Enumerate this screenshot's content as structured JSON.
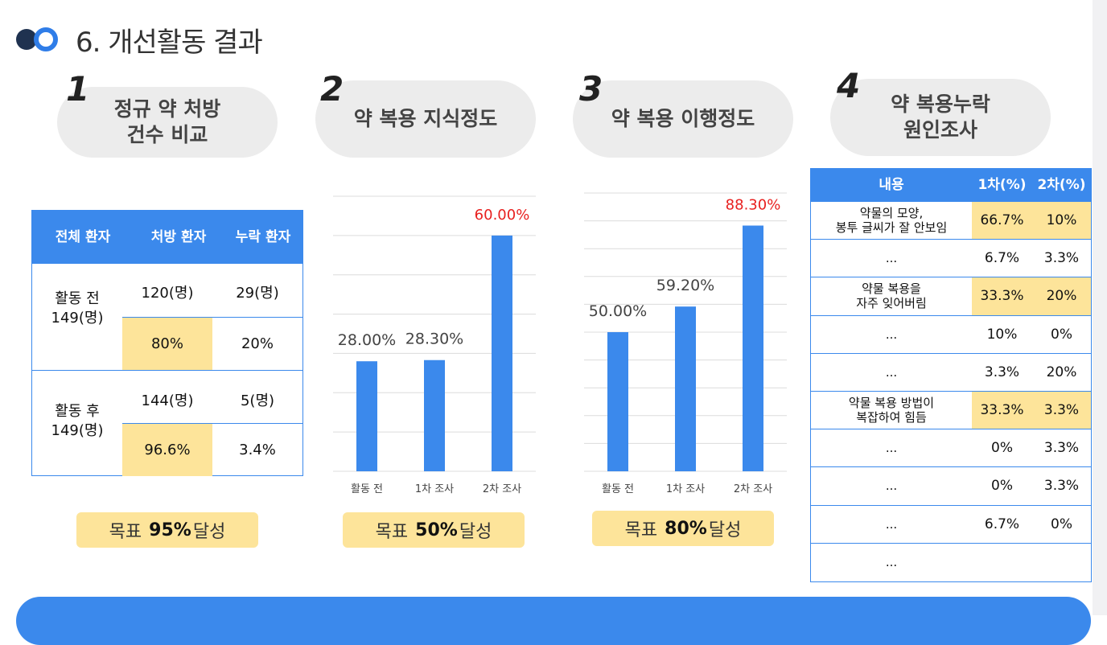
{
  "title": "6. 개선활동 결과",
  "sections": [
    {
      "num": "1",
      "label": "정규 약 처방\n건수 비교"
    },
    {
      "num": "2",
      "label": "약 복용 지식정도"
    },
    {
      "num": "3",
      "label": "약 복용 이행정도"
    },
    {
      "num": "4",
      "label": "약 복용누락\n원인조사"
    }
  ],
  "table1": {
    "headers": [
      "전체 환자",
      "처방 환자",
      "누락 환자"
    ],
    "rows": [
      {
        "label": "활동 전",
        "total": "149(명)",
        "rx_count": "120(명)",
        "miss_count": "29(명)",
        "rx_pct": "80%",
        "miss_pct": "20%"
      },
      {
        "label": "활동 후",
        "total": "149(명)",
        "rx_count": "144(명)",
        "miss_count": "5(명)",
        "rx_pct": "96.6%",
        "miss_pct": "3.4%"
      }
    ]
  },
  "goals": [
    {
      "pre": "목표",
      "value": "95%",
      "post": "달성"
    },
    {
      "pre": "목표",
      "value": "50%",
      "post": "달성"
    },
    {
      "pre": "목표",
      "value": "80%",
      "post": "달성"
    }
  ],
  "chart_data": [
    {
      "type": "bar",
      "categories": [
        "활동 전",
        "1차 조사",
        "2차 조사"
      ],
      "values": [
        28.0,
        28.3,
        60.0
      ],
      "labels": [
        "28.00%",
        "28.30%",
        "60.00%"
      ],
      "ylim": [
        0,
        70
      ],
      "grid": true,
      "bar_color": "#3b89ec",
      "highlight_label_color": "#e8201f"
    },
    {
      "type": "bar",
      "categories": [
        "활동 전",
        "1차 조사",
        "2차 조사"
      ],
      "values": [
        50.0,
        59.2,
        88.3
      ],
      "labels": [
        "50.00%",
        "59.20%",
        "88.30%"
      ],
      "ylim": [
        0,
        100
      ],
      "grid": true,
      "bar_color": "#3b89ec",
      "highlight_label_color": "#e8201f"
    }
  ],
  "table4": {
    "headers": [
      "내용",
      "1차(%)",
      "2차(%)"
    ],
    "rows": [
      {
        "content": "약물의 모양,\n봉투 글씨가 잘 안보임",
        "first": "66.7%",
        "second": "10%",
        "highlight": true
      },
      {
        "content": "...",
        "first": "6.7%",
        "second": "3.3%",
        "highlight": false
      },
      {
        "content": "약물 복용을\n자주 잊어버림",
        "first": "33.3%",
        "second": "20%",
        "highlight": true
      },
      {
        "content": "...",
        "first": "10%",
        "second": "0%",
        "highlight": false
      },
      {
        "content": "...",
        "first": "3.3%",
        "second": "20%",
        "highlight": false
      },
      {
        "content": "약물 복용 방법이\n복잡하여 힘듬",
        "first": "33.3%",
        "second": "3.3%",
        "highlight": true
      },
      {
        "content": "...",
        "first": "0%",
        "second": "3.3%",
        "highlight": false
      },
      {
        "content": "...",
        "first": "0%",
        "second": "3.3%",
        "highlight": false
      },
      {
        "content": "...",
        "first": "6.7%",
        "second": "0%",
        "highlight": false
      },
      {
        "content": "...",
        "first": "",
        "second": "",
        "highlight": false
      }
    ]
  },
  "colors": {
    "accent": "#3b89ec",
    "highlight": "#fde49a",
    "pill": "#ececec",
    "red_label": "#e8201f"
  }
}
